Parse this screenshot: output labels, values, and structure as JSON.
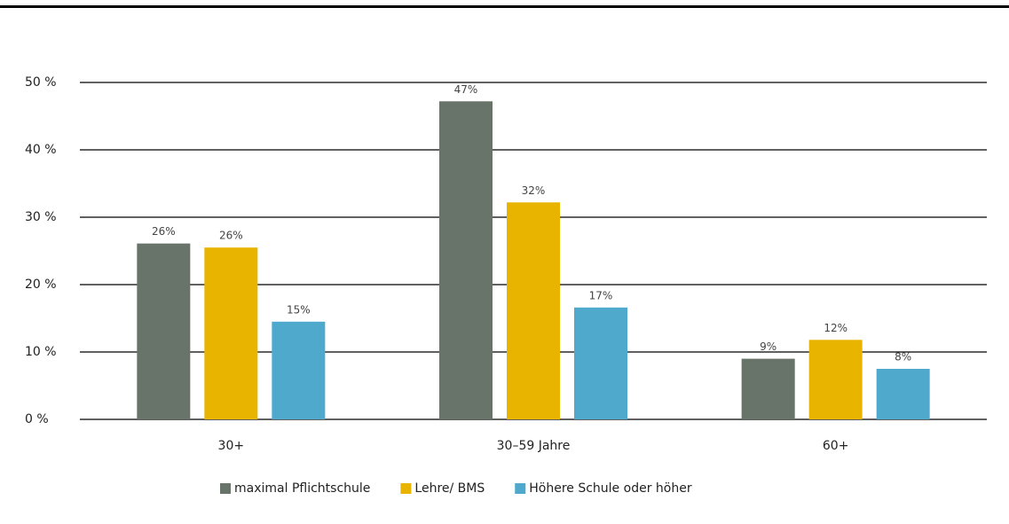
{
  "chart_data": {
    "type": "bar",
    "categories": [
      "30+",
      "30–59 Jahre",
      "60+"
    ],
    "series": [
      {
        "name": "maximal Pflichtschule",
        "color": "#68746a",
        "values": [
          26.1,
          47.2,
          9.0
        ],
        "value_labels": [
          "26%",
          "47%",
          "9%"
        ]
      },
      {
        "name": "Lehre/ BMS",
        "color": "#e8b400",
        "values": [
          25.5,
          32.2,
          11.8
        ],
        "value_labels": [
          "26%",
          "32%",
          "12%"
        ]
      },
      {
        "name": "Höhere Schule oder höher",
        "color": "#4fa9cc",
        "values": [
          14.5,
          16.6,
          7.5
        ],
        "value_labels": [
          "15%",
          "17%",
          "8%"
        ]
      }
    ],
    "ylim": [
      0,
      50
    ],
    "yticks": [
      {
        "value": 0,
        "label": "0 %"
      },
      {
        "value": 10,
        "label": "10 %"
      },
      {
        "value": 20,
        "label": "20 %"
      },
      {
        "value": 30,
        "label": "30 %"
      },
      {
        "value": 40,
        "label": "40 %"
      },
      {
        "value": 50,
        "label": "50 %"
      }
    ],
    "grid": true,
    "legend": "bottom"
  }
}
